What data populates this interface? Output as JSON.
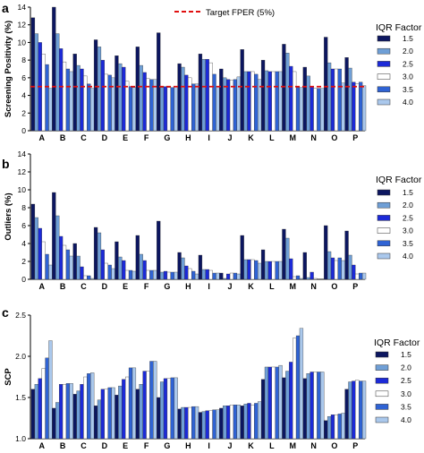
{
  "figure_colors": {
    "series": [
      "#0c1660",
      "#6f9fd6",
      "#1c2ad8",
      "#ffffff",
      "#2f63d4",
      "#aac8ec"
    ],
    "stroke": "#333333",
    "target_line": "#e01010"
  },
  "chart_data": [
    {
      "panel_label": "a",
      "type": "bar",
      "ylabel": "Screening Positivity (%)",
      "ylim": [
        0,
        14
      ],
      "yticks": [
        0,
        2,
        4,
        6,
        8,
        10,
        12,
        14
      ],
      "categories": [
        "A",
        "B",
        "C",
        "D",
        "E",
        "F",
        "G",
        "H",
        "I",
        "J",
        "K",
        "L",
        "M",
        "N",
        "O",
        "P"
      ],
      "legend_title": "IQR Factor",
      "legend_placement": "right",
      "reference_line": {
        "label": "Target FPER (5%)",
        "value": 5
      },
      "series": [
        {
          "name": "1.5",
          "values": [
            12.8,
            14.0,
            8.7,
            10.3,
            8.5,
            9.5,
            11.1,
            7.6,
            8.7,
            7.0,
            9.2,
            8.0,
            9.8,
            7.2,
            10.6,
            8.3
          ]
        },
        {
          "name": "2.0",
          "values": [
            11.0,
            11.0,
            7.4,
            9.5,
            7.6,
            7.4,
            4.9,
            7.2,
            8.1,
            6.0,
            6.7,
            6.8,
            8.8,
            6.2,
            7.7,
            7.1
          ]
        },
        {
          "name": "2.5",
          "values": [
            10.0,
            9.3,
            7.0,
            8.0,
            7.2,
            6.6,
            5.0,
            6.3,
            8.1,
            5.8,
            6.7,
            6.7,
            7.3,
            5.0,
            7.0,
            5.5
          ]
        },
        {
          "name": "3.0",
          "values": [
            8.7,
            7.8,
            6.2,
            6.4,
            5.6,
            5.9,
            4.9,
            6.0,
            7.7,
            5.7,
            6.7,
            6.7,
            6.7,
            4.8,
            7.0,
            5.3
          ]
        },
        {
          "name": "3.5",
          "values": [
            7.5,
            7.0,
            5.3,
            6.3,
            5.0,
            5.8,
            4.9,
            5.3,
            6.4,
            5.8,
            6.4,
            6.7,
            4.9,
            4.8,
            7.0,
            5.5
          ]
        },
        {
          "name": "4.0",
          "values": [
            4.8,
            6.7,
            4.8,
            6.0,
            4.9,
            5.8,
            5.0,
            5.3,
            5.0,
            6.1,
            5.8,
            6.7,
            4.9,
            4.8,
            5.4,
            5.1
          ]
        }
      ]
    },
    {
      "panel_label": "b",
      "type": "bar",
      "ylabel": "Outliers (%)",
      "ylim": [
        0,
        14
      ],
      "yticks": [
        0,
        2,
        4,
        6,
        8,
        10,
        12,
        14
      ],
      "categories": [
        "A",
        "B",
        "C",
        "D",
        "E",
        "F",
        "G",
        "H",
        "I",
        "J",
        "K",
        "L",
        "M",
        "N",
        "O",
        "P"
      ],
      "legend_title": "IQR Factor",
      "legend_placement": "right",
      "series": [
        {
          "name": "1.5",
          "values": [
            8.4,
            9.7,
            4.0,
            5.8,
            4.2,
            4.9,
            6.5,
            3.0,
            2.7,
            0.7,
            4.9,
            3.3,
            5.6,
            3.0,
            6.0,
            5.4
          ]
        },
        {
          "name": "2.0",
          "values": [
            6.9,
            7.1,
            2.6,
            5.2,
            2.5,
            2.8,
            0.8,
            2.4,
            1.1,
            0.1,
            2.2,
            2.0,
            4.6,
            0.2,
            3.1,
            2.7
          ]
        },
        {
          "name": "2.5",
          "values": [
            5.7,
            4.8,
            1.4,
            3.3,
            2.1,
            2.1,
            0.9,
            1.5,
            1.1,
            0.6,
            2.2,
            2.0,
            2.3,
            0.8,
            2.4,
            1.6
          ]
        },
        {
          "name": "3.0",
          "values": [
            4.2,
            3.8,
            0.4,
            1.8,
            1.0,
            1.0,
            0.8,
            1.2,
            1.0,
            0.7,
            2.2,
            2.0,
            0.3,
            0.1,
            2.1,
            0.6
          ]
        },
        {
          "name": "3.5",
          "values": [
            2.8,
            3.3,
            0.4,
            1.6,
            1.0,
            1.0,
            0.8,
            0.9,
            0.7,
            0.7,
            2.1,
            2.0,
            0.4,
            0.0,
            2.4,
            0.7
          ]
        },
        {
          "name": "4.0",
          "values": [
            1.6,
            2.6,
            0.1,
            1.2,
            0.9,
            1.0,
            0.8,
            0.6,
            0.7,
            0.6,
            1.8,
            2.0,
            0.1,
            0.0,
            2.1,
            0.7
          ]
        }
      ]
    },
    {
      "panel_label": "c",
      "type": "bar",
      "ylabel": "SCP",
      "ylim": [
        1.0,
        2.5
      ],
      "yticks": [
        1.0,
        1.5,
        2.0,
        2.5
      ],
      "categories": [
        "A",
        "B",
        "C",
        "D",
        "E",
        "F",
        "G",
        "H",
        "I",
        "J",
        "K",
        "L",
        "M",
        "N",
        "O",
        "P"
      ],
      "legend_title": "IQR Factor",
      "legend_placement": "right",
      "series": [
        {
          "name": "1.5",
          "values": [
            1.6,
            1.37,
            1.54,
            1.4,
            1.53,
            1.6,
            1.5,
            1.36,
            1.32,
            1.37,
            1.4,
            1.72,
            1.74,
            1.73,
            1.22,
            1.6
          ]
        },
        {
          "name": "2.0",
          "values": [
            1.66,
            1.44,
            1.58,
            1.47,
            1.64,
            1.66,
            1.69,
            1.38,
            1.33,
            1.4,
            1.42,
            1.87,
            1.82,
            1.79,
            1.27,
            1.69
          ]
        },
        {
          "name": "2.5",
          "values": [
            1.73,
            1.66,
            1.66,
            1.6,
            1.72,
            1.82,
            1.73,
            1.38,
            1.34,
            1.4,
            1.43,
            1.87,
            1.93,
            1.81,
            1.29,
            1.7
          ]
        },
        {
          "name": "3.0",
          "values": [
            1.85,
            1.66,
            1.75,
            1.6,
            1.75,
            1.82,
            1.73,
            1.38,
            1.34,
            1.41,
            1.41,
            1.87,
            2.22,
            1.81,
            1.29,
            1.71
          ]
        },
        {
          "name": "3.5",
          "values": [
            1.98,
            1.67,
            1.79,
            1.62,
            1.86,
            1.94,
            1.74,
            1.39,
            1.35,
            1.41,
            1.43,
            1.87,
            2.25,
            1.81,
            1.3,
            1.7
          ]
        },
        {
          "name": "4.0",
          "values": [
            2.19,
            1.67,
            1.8,
            1.62,
            1.86,
            1.94,
            1.74,
            1.39,
            1.35,
            1.41,
            1.45,
            1.89,
            2.34,
            1.81,
            1.31,
            1.7
          ]
        }
      ]
    }
  ]
}
